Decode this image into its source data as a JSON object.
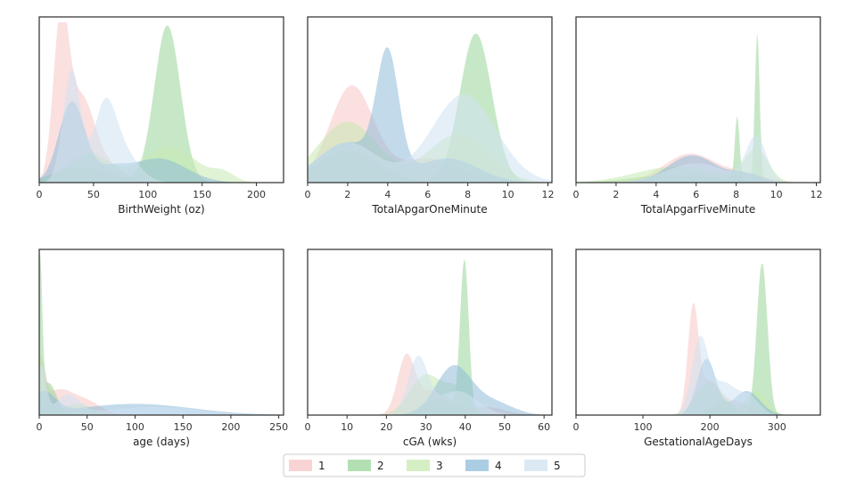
{
  "series_colors": [
    "#f7c6c6",
    "#99d699",
    "#c7eab0",
    "#8fbcd9",
    "#cfe2f0"
  ],
  "legend": {
    "entries": [
      "1",
      "2",
      "3",
      "4",
      "5"
    ],
    "placement": "bottom-center"
  },
  "chart_data": [
    {
      "type": "area",
      "xlabel": "BirthWeight (oz)",
      "xlim": [
        0,
        225
      ],
      "xticks": [
        "0",
        "50",
        "100",
        "150",
        "200"
      ],
      "ylim": [
        0,
        1
      ],
      "series": [
        {
          "name": "1",
          "comps": [
            [
              20,
              7,
              0.95
            ],
            [
              38,
              12,
              0.45
            ],
            [
              55,
              20,
              0.12
            ]
          ]
        },
        {
          "name": "2",
          "comps": [
            [
              118,
              12,
              0.98
            ],
            [
              40,
              25,
              0.1
            ]
          ]
        },
        {
          "name": "3",
          "comps": [
            [
              120,
              25,
              0.22
            ],
            [
              45,
              20,
              0.18
            ],
            [
              170,
              10,
              0.05
            ]
          ]
        },
        {
          "name": "4",
          "comps": [
            [
              30,
              12,
              0.5
            ],
            [
              110,
              25,
              0.15
            ],
            [
              65,
              15,
              0.08
            ]
          ]
        },
        {
          "name": "5",
          "comps": [
            [
              30,
              8,
              0.7
            ],
            [
              60,
              10,
              0.4
            ],
            [
              75,
              15,
              0.2
            ]
          ]
        }
      ]
    },
    {
      "type": "area",
      "xlabel": "TotalApgarOneMinute",
      "xlim": [
        0,
        12.2
      ],
      "xticks": [
        "0",
        "2",
        "4",
        "6",
        "8",
        "10",
        "12"
      ],
      "ylim": [
        0,
        1
      ],
      "series": [
        {
          "name": "1",
          "comps": [
            [
              2.2,
              1.1,
              0.6
            ],
            [
              6,
              1.5,
              0.15
            ]
          ]
        },
        {
          "name": "2",
          "comps": [
            [
              8.4,
              0.8,
              0.93
            ],
            [
              2,
              1.5,
              0.2
            ]
          ]
        },
        {
          "name": "3",
          "comps": [
            [
              2,
              1.5,
              0.38
            ],
            [
              7.5,
              1.5,
              0.3
            ]
          ]
        },
        {
          "name": "4",
          "comps": [
            [
              4,
              0.55,
              0.72
            ],
            [
              2,
              1.5,
              0.25
            ],
            [
              7,
              1.5,
              0.15
            ]
          ]
        },
        {
          "name": "5",
          "comps": [
            [
              7.8,
              1.6,
              0.55
            ],
            [
              2,
              1.5,
              0.25
            ]
          ]
        }
      ]
    },
    {
      "type": "area",
      "xlabel": "TotalApgarFiveMinute",
      "xlim": [
        0,
        12.2
      ],
      "xticks": [
        "0",
        "2",
        "4",
        "6",
        "8",
        "10",
        "12"
      ],
      "ylim": [
        0,
        1
      ],
      "series": [
        {
          "name": "1",
          "comps": [
            [
              5.7,
              1.3,
              0.18
            ],
            [
              8.5,
              1.0,
              0.05
            ]
          ]
        },
        {
          "name": "2",
          "comps": [
            [
              9.05,
              0.12,
              0.93
            ],
            [
              8.05,
              0.12,
              0.4
            ],
            [
              5,
              2.0,
              0.05
            ]
          ]
        },
        {
          "name": "3",
          "comps": [
            [
              9,
              0.6,
              0.2
            ],
            [
              5,
              2.0,
              0.1
            ]
          ]
        },
        {
          "name": "4",
          "comps": [
            [
              5.8,
              1.2,
              0.17
            ],
            [
              8.5,
              0.8,
              0.05
            ]
          ]
        },
        {
          "name": "5",
          "comps": [
            [
              9,
              0.5,
              0.28
            ],
            [
              6,
              1.5,
              0.12
            ]
          ]
        }
      ]
    },
    {
      "type": "area",
      "xlabel": "age (days)",
      "xlim": [
        0,
        255
      ],
      "xticks": [
        "0",
        "50",
        "100",
        "150",
        "200",
        "250"
      ],
      "ylim": [
        0,
        1
      ],
      "series": [
        {
          "name": "1",
          "comps": [
            [
              1,
              5,
              0.3
            ],
            [
              50,
              15,
              0.08
            ],
            [
              20,
              15,
              0.15
            ]
          ]
        },
        {
          "name": "2",
          "comps": [
            [
              0.5,
              2.5,
              0.95
            ],
            [
              10,
              8,
              0.2
            ]
          ]
        },
        {
          "name": "3",
          "comps": [
            [
              1,
              4,
              0.4
            ],
            [
              40,
              15,
              0.07
            ]
          ]
        },
        {
          "name": "4",
          "comps": [
            [
              5,
              12,
              0.13
            ],
            [
              100,
              60,
              0.07
            ]
          ]
        },
        {
          "name": "5",
          "comps": [
            [
              2,
              5,
              0.3
            ],
            [
              30,
              12,
              0.12
            ],
            [
              120,
              50,
              0.05
            ]
          ]
        }
      ]
    },
    {
      "type": "area",
      "xlabel": "cGA (wks)",
      "xlim": [
        0,
        62
      ],
      "xticks": [
        "0",
        "10",
        "20",
        "30",
        "40",
        "50",
        "60"
      ],
      "ylim": [
        0,
        1
      ],
      "series": [
        {
          "name": "1",
          "comps": [
            [
              25,
              2.2,
              0.35
            ],
            [
              32,
              4,
              0.15
            ],
            [
              45,
              5,
              0.05
            ]
          ]
        },
        {
          "name": "2",
          "comps": [
            [
              39.8,
              1.1,
              0.95
            ],
            [
              33,
              4,
              0.1
            ]
          ]
        },
        {
          "name": "3",
          "comps": [
            [
              30,
              4,
              0.25
            ],
            [
              38,
              3,
              0.15
            ]
          ]
        },
        {
          "name": "4",
          "comps": [
            [
              37,
              4.5,
              0.3
            ],
            [
              47,
              5,
              0.08
            ]
          ]
        },
        {
          "name": "5",
          "comps": [
            [
              28,
              2.5,
              0.35
            ],
            [
              38,
              5,
              0.15
            ]
          ]
        }
      ]
    },
    {
      "type": "area",
      "xlabel": "GestationalAgeDays",
      "xlim": [
        0,
        365
      ],
      "xticks": [
        "0",
        "100",
        "200",
        "300"
      ],
      "ylim": [
        0,
        1
      ],
      "series": [
        {
          "name": "1",
          "comps": [
            [
              175,
              8,
              0.65
            ],
            [
              200,
              15,
              0.2
            ],
            [
              240,
              20,
              0.08
            ]
          ]
        },
        {
          "name": "2",
          "comps": [
            [
              278,
              8,
              0.95
            ],
            [
              220,
              15,
              0.1
            ]
          ]
        },
        {
          "name": "3",
          "comps": [
            [
              200,
              20,
              0.2
            ],
            [
              270,
              15,
              0.15
            ]
          ]
        },
        {
          "name": "4",
          "comps": [
            [
              195,
              14,
              0.35
            ],
            [
              255,
              20,
              0.15
            ]
          ]
        },
        {
          "name": "5",
          "comps": [
            [
              185,
              12,
              0.45
            ],
            [
              220,
              20,
              0.2
            ],
            [
              260,
              15,
              0.1
            ]
          ]
        }
      ]
    }
  ]
}
